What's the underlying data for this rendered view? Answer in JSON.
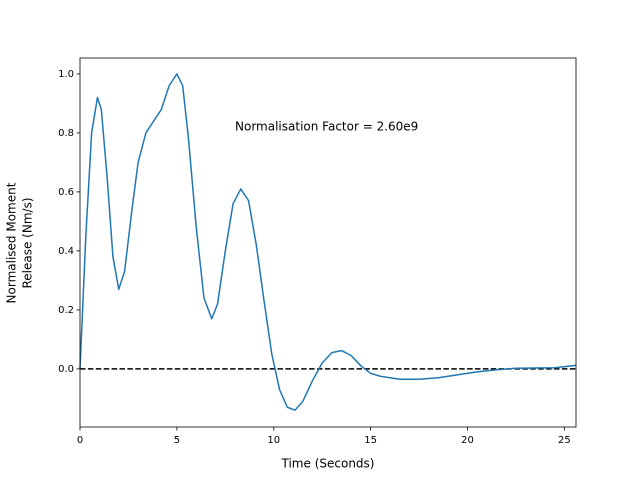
{
  "chart_data": {
    "type": "line",
    "x_label": "Time (Seconds)",
    "y_label": [
      "Normalised Moment",
      "Release (Nm/s)"
    ],
    "annotation": "Normalisation Factor = 2.60e9",
    "hline": 0,
    "series": [
      {
        "color": "#1f77b4",
        "x": [
          0,
          0.3,
          0.6,
          0.9,
          1.1,
          1.4,
          1.7,
          2.0,
          2.3,
          2.7,
          3.0,
          3.4,
          3.8,
          4.2,
          4.6,
          5.0,
          5.3,
          5.6,
          6.0,
          6.4,
          6.8,
          7.1,
          7.5,
          7.9,
          8.3,
          8.7,
          9.1,
          9.5,
          9.9,
          10.3,
          10.7,
          11.1,
          11.5,
          12.0,
          12.5,
          13.0,
          13.5,
          14.0,
          14.5,
          15.0,
          15.5,
          16.5,
          17.5,
          18.5,
          19.5,
          20.5,
          21.5,
          22.5,
          23.5,
          24.5,
          25.6
        ],
        "values": [
          0,
          0.45,
          0.8,
          0.92,
          0.88,
          0.65,
          0.38,
          0.27,
          0.33,
          0.55,
          0.7,
          0.8,
          0.84,
          0.88,
          0.96,
          1.0,
          0.96,
          0.78,
          0.48,
          0.24,
          0.17,
          0.22,
          0.4,
          0.56,
          0.61,
          0.57,
          0.42,
          0.23,
          0.05,
          -0.07,
          -0.13,
          -0.14,
          -0.11,
          -0.04,
          0.02,
          0.055,
          0.062,
          0.045,
          0.01,
          -0.015,
          -0.025,
          -0.035,
          -0.035,
          -0.03,
          -0.02,
          -0.01,
          -0.003,
          0.002,
          0.003,
          0.004,
          0.012
        ]
      }
    ],
    "xlim": [
      0,
      25.6
    ],
    "xticks": [
      0,
      5,
      10,
      15,
      20,
      25
    ],
    "ylim": [
      -0.197,
      1.054
    ],
    "yticks": [
      {
        "value": 0,
        "label": "0.0"
      },
      0.2,
      0.4,
      0.6,
      0.8,
      {
        "value": 1,
        "label": "1.0"
      }
    ]
  }
}
